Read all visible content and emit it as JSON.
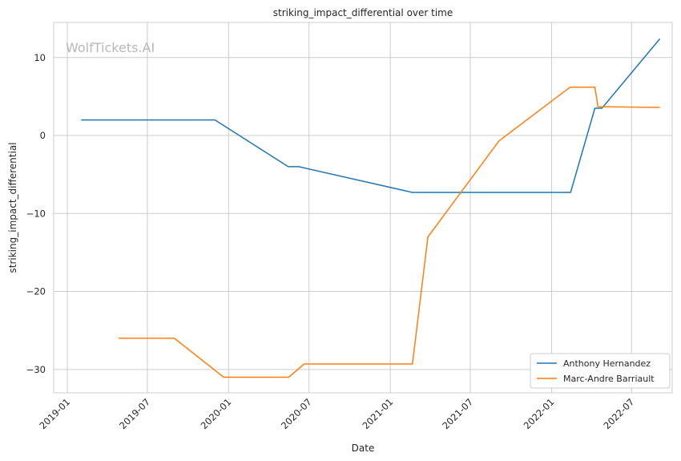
{
  "chart_data": {
    "type": "line",
    "title": "striking_impact_differential over time",
    "xlabel": "Date",
    "ylabel": "striking_impact_differential",
    "watermark": "WolfTickets.AI",
    "grid": true,
    "legend_position": "bottom-right",
    "x_ticks": [
      "2019-01",
      "2019-07",
      "2020-01",
      "2020-07",
      "2021-01",
      "2021-07",
      "2022-01",
      "2022-07"
    ],
    "y_ticks": [
      10,
      0,
      -10,
      -20,
      -30
    ],
    "y_tick_labels": [
      "10",
      "0",
      "−10",
      "−20",
      "−30"
    ],
    "ylim": [
      -33,
      14.5
    ],
    "xlim": [
      "2018-12-01",
      "2022-10-01"
    ],
    "series": [
      {
        "name": "Anthony Hernandez",
        "color": "#1f77b4",
        "points": [
          {
            "x": "2019-02-01",
            "y": 2.0
          },
          {
            "x": "2019-12-01",
            "y": 2.0
          },
          {
            "x": "2020-05-15",
            "y": -4.0
          },
          {
            "x": "2020-06-08",
            "y": -4.0
          },
          {
            "x": "2021-02-20",
            "y": -7.3
          },
          {
            "x": "2022-02-13",
            "y": -7.3
          },
          {
            "x": "2022-04-09",
            "y": 3.5
          },
          {
            "x": "2022-04-25",
            "y": 3.5
          },
          {
            "x": "2022-09-03",
            "y": 12.4
          }
        ]
      },
      {
        "name": "Marc-Andre Barriault",
        "color": "#ff7f0e",
        "points": [
          {
            "x": "2019-04-27",
            "y": -26.0
          },
          {
            "x": "2019-08-31",
            "y": -26.0
          },
          {
            "x": "2019-12-21",
            "y": -31.0
          },
          {
            "x": "2020-05-16",
            "y": -31.0
          },
          {
            "x": "2020-06-20",
            "y": -29.3
          },
          {
            "x": "2021-02-20",
            "y": -29.3
          },
          {
            "x": "2021-03-27",
            "y": -13.0
          },
          {
            "x": "2021-09-04",
            "y": -0.7
          },
          {
            "x": "2022-02-12",
            "y": 6.2
          },
          {
            "x": "2022-04-09",
            "y": 6.2
          },
          {
            "x": "2022-04-16",
            "y": 3.7
          },
          {
            "x": "2022-09-03",
            "y": 3.6
          }
        ]
      }
    ]
  }
}
